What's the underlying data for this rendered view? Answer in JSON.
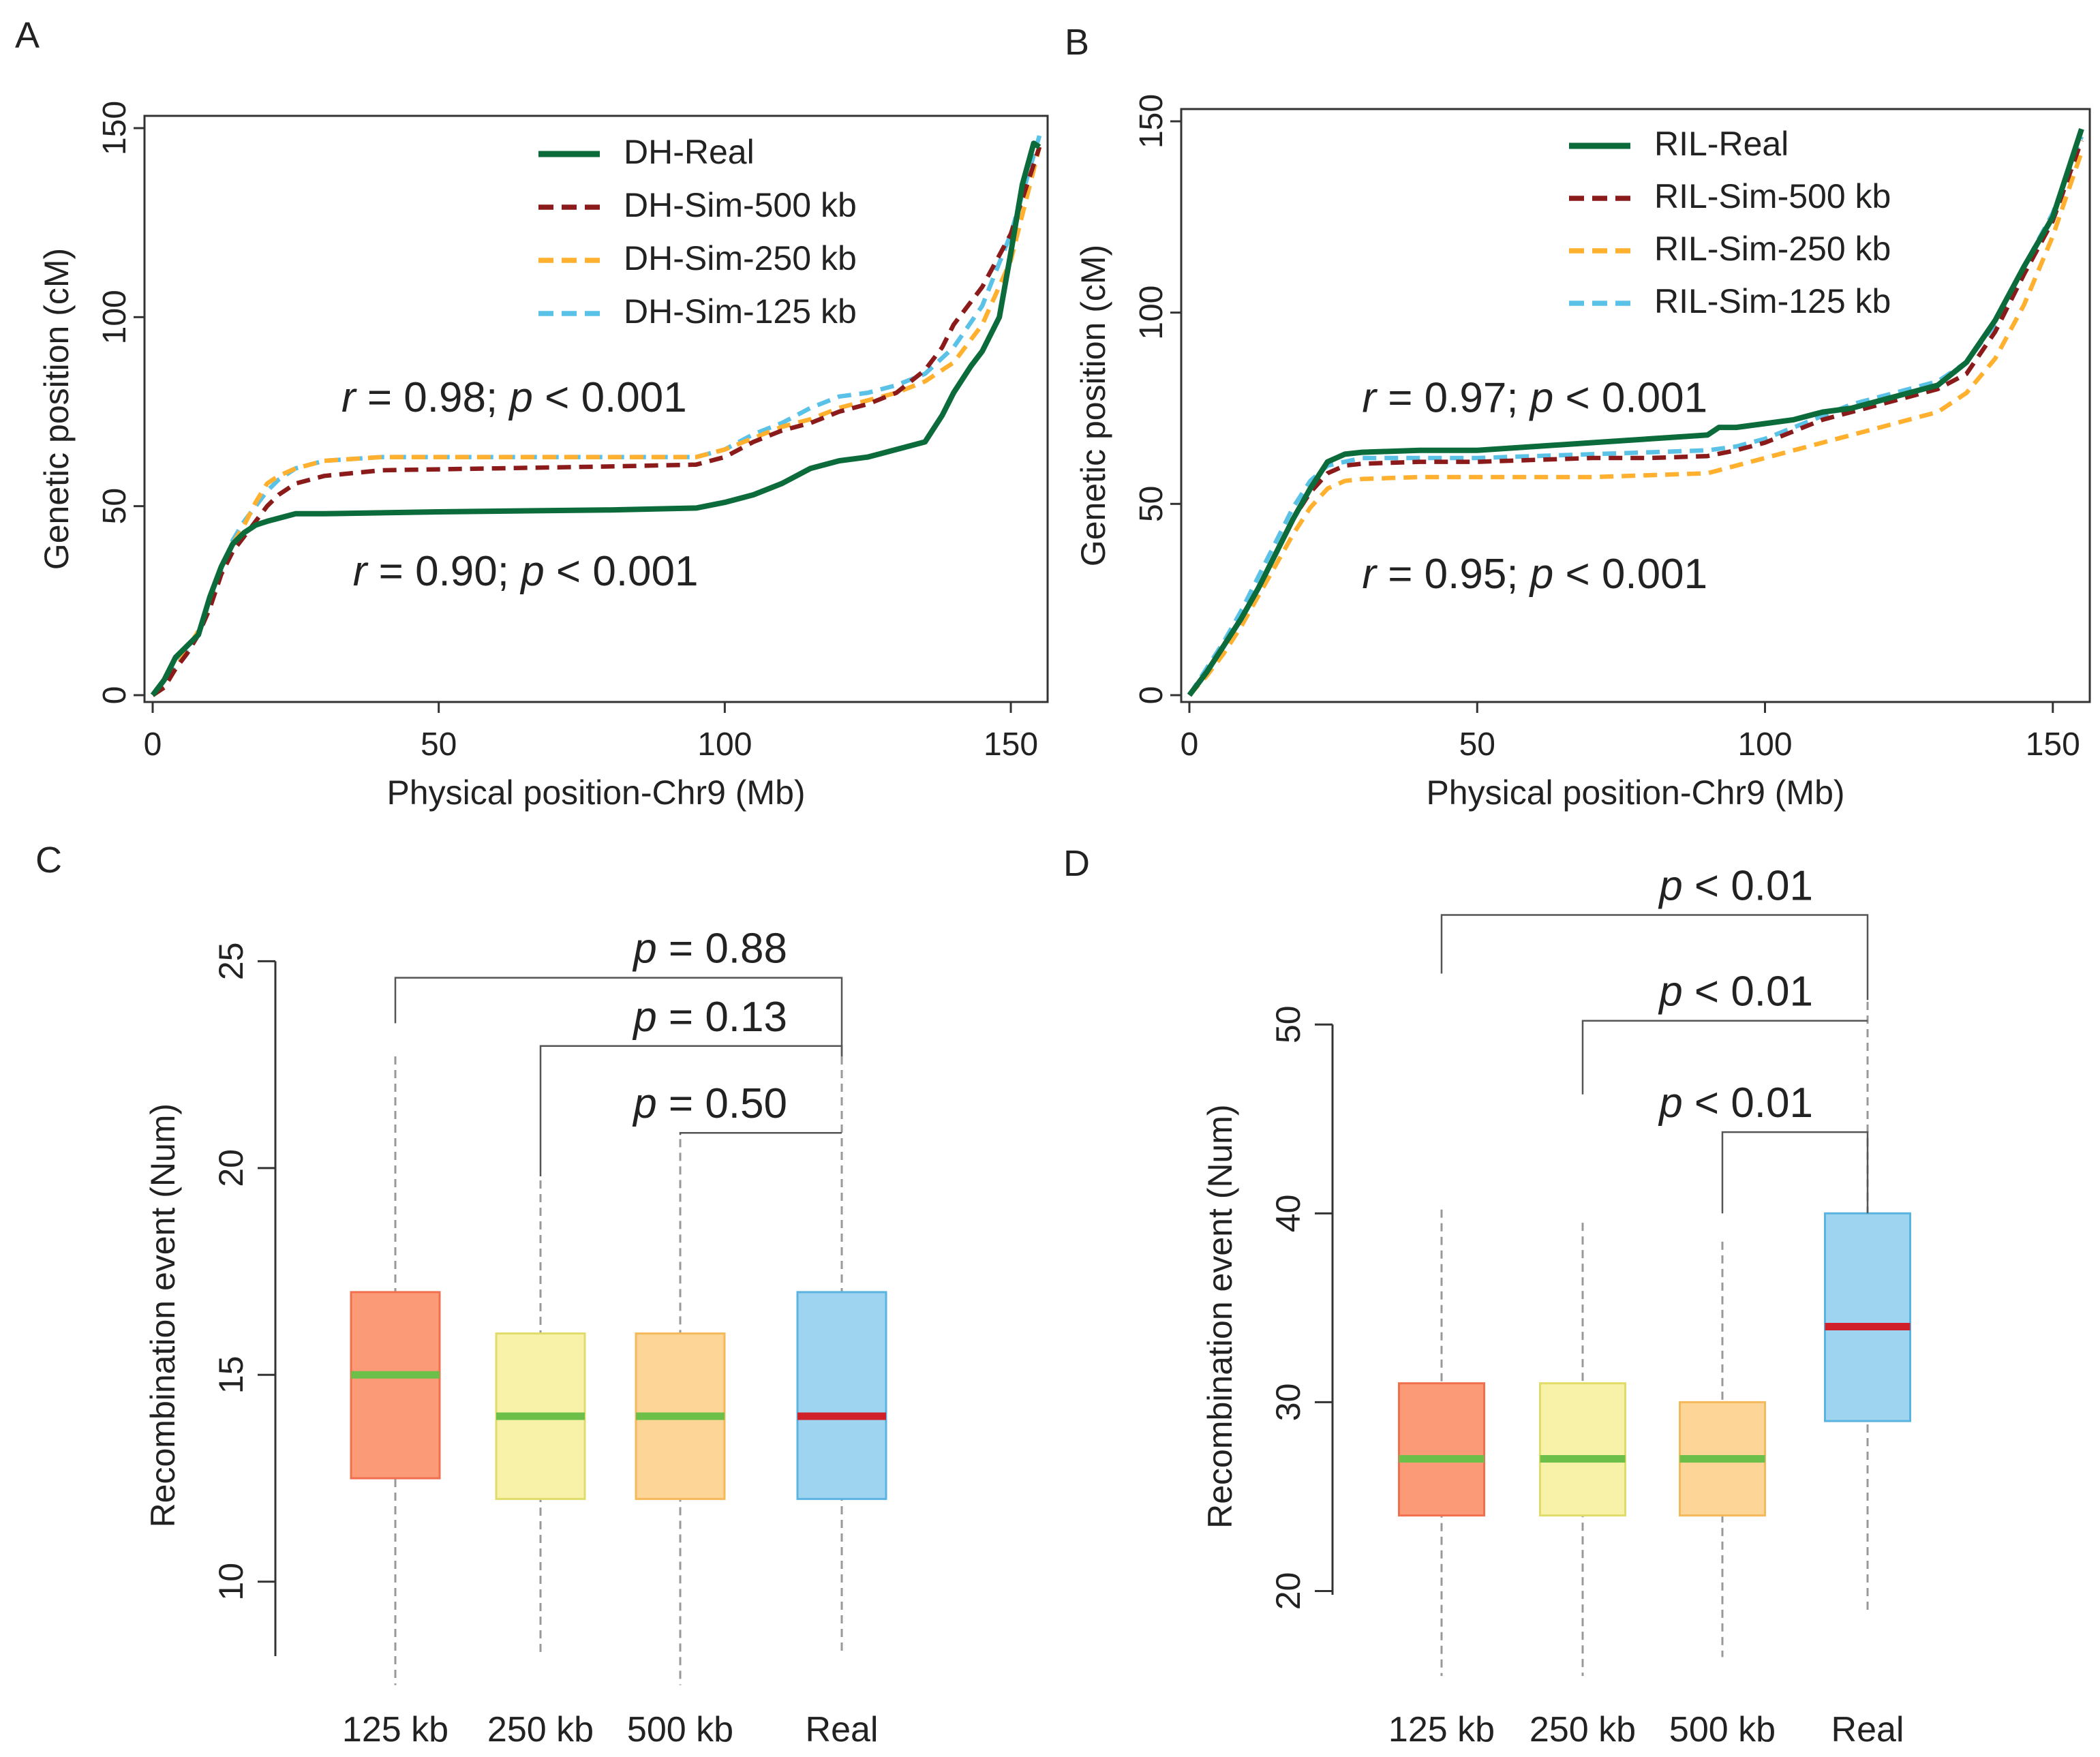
{
  "panel_labels": [
    "A",
    "B",
    "C",
    "D"
  ],
  "colors": {
    "real_line": "#0b6b3a",
    "sim500": "#8b1a1a",
    "sim250": "#ffb02e",
    "sim125": "#5bc2e7",
    "box125": "#fb9a77",
    "box125_edge": "#f0704e",
    "box250": "#f7f2a8",
    "box250_edge": "#e0dc6a",
    "box500": "#fdd596",
    "box500_edge": "#f5b85a",
    "boxReal": "#9fd4f0",
    "boxReal_edge": "#5bb4e0",
    "median_sim": "#6cc04a",
    "median_real": "#d0202a",
    "axis": "#333333",
    "whisker": "#999999"
  },
  "chart_data": [
    {
      "id": "A",
      "type": "line",
      "xlabel": "Physical position-Chr9 (Mb)",
      "ylabel": "Genetic position (cM)",
      "xlim": [
        0,
        155
      ],
      "ylim": [
        0,
        150
      ],
      "xticks": [
        0,
        50,
        100,
        150
      ],
      "yticks": [
        0,
        50,
        100,
        150
      ],
      "legend": [
        "DH-Real",
        "DH-Sim-500 kb",
        "DH-Sim-250 kb",
        "DH-Sim-125 kb"
      ],
      "annotations": [
        {
          "r_label": "r",
          "r_value": " = 0.98; ",
          "p_label": "p",
          "p_value": " < 0.001",
          "anchor_x": 33,
          "anchor_y": 75
        },
        {
          "r_label": "r",
          "r_value": " = 0.90; ",
          "p_label": "p",
          "p_value": " < 0.001",
          "anchor_x": 35,
          "anchor_y": 29
        }
      ],
      "series": [
        {
          "name": "DH-Real",
          "style": "real",
          "x": [
            0,
            2,
            4,
            6,
            8,
            10,
            12,
            14,
            16,
            18,
            20,
            25,
            30,
            50,
            80,
            95,
            100,
            105,
            110,
            115,
            120,
            125,
            130,
            135,
            138,
            140,
            143,
            145,
            148,
            150,
            152,
            154,
            155
          ],
          "y": [
            0,
            4,
            10,
            13,
            16,
            26,
            34,
            40,
            43,
            45,
            46,
            48,
            48,
            48.5,
            49,
            49.5,
            51,
            53,
            56,
            60,
            62,
            63,
            65,
            67,
            74,
            80,
            87,
            91,
            100,
            117,
            135,
            146,
            145
          ]
        },
        {
          "name": "DH-Sim-500 kb",
          "style": "sim500",
          "x": [
            0,
            2,
            4,
            6,
            8,
            10,
            12,
            14,
            16,
            18,
            20,
            22,
            25,
            30,
            40,
            60,
            80,
            95,
            100,
            105,
            110,
            115,
            120,
            125,
            130,
            135,
            138,
            140,
            145,
            150,
            155
          ],
          "y": [
            0,
            2,
            7,
            11,
            16,
            23,
            32,
            38,
            42,
            46,
            50,
            53,
            56,
            58,
            59.5,
            60,
            60.5,
            61,
            63,
            67,
            70,
            72,
            75,
            77,
            80,
            86,
            92,
            98,
            108,
            122,
            145
          ]
        },
        {
          "name": "DH-Sim-250 kb",
          "style": "sim250",
          "x": [
            0,
            2,
            4,
            6,
            8,
            10,
            12,
            14,
            16,
            18,
            20,
            22,
            25,
            30,
            40,
            60,
            80,
            95,
            100,
            105,
            110,
            115,
            120,
            125,
            130,
            135,
            140,
            145,
            150,
            155
          ],
          "y": [
            0,
            2,
            7,
            12,
            17,
            24,
            33,
            40,
            45,
            51,
            56,
            58,
            60,
            62,
            63,
            63,
            63,
            63,
            65,
            68,
            71,
            73,
            76,
            78,
            80,
            83,
            88,
            98,
            115,
            145
          ]
        },
        {
          "name": "DH-Sim-125 kb",
          "style": "sim125",
          "x": [
            0,
            2,
            4,
            6,
            8,
            10,
            12,
            14,
            16,
            18,
            20,
            22,
            25,
            30,
            40,
            60,
            80,
            95,
            100,
            105,
            110,
            115,
            120,
            125,
            130,
            135,
            140,
            145,
            150,
            155
          ],
          "y": [
            0,
            3,
            8,
            12,
            17,
            25,
            33,
            41,
            46,
            50,
            54,
            57,
            60,
            62,
            63,
            63,
            63,
            63,
            65,
            69,
            72,
            76,
            79,
            80,
            82,
            85,
            92,
            103,
            122,
            148
          ]
        }
      ]
    },
    {
      "id": "B",
      "type": "line",
      "xlabel": "Physical position-Chr9 (Mb)",
      "ylabel": "Genetic position (cM)",
      "xlim": [
        0,
        155
      ],
      "ylim": [
        0,
        150
      ],
      "xticks": [
        0,
        50,
        100,
        150
      ],
      "yticks": [
        0,
        50,
        100,
        150
      ],
      "legend": [
        "RIL-Real",
        "RIL-Sim-500 kb",
        "RIL-Sim-250 kb",
        "RIL-Sim-125 kb"
      ],
      "annotations": [
        {
          "r_label": "r",
          "r_value": " = 0.97; ",
          "p_label": "p",
          "p_value": " < 0.001",
          "anchor_x": 30,
          "anchor_y": 74
        },
        {
          "r_label": "r",
          "r_value": " = 0.95; ",
          "p_label": "p",
          "p_value": " < 0.001",
          "anchor_x": 30,
          "anchor_y": 28
        }
      ],
      "series": [
        {
          "name": "RIL-Real",
          "style": "real",
          "x": [
            0,
            3,
            6,
            9,
            12,
            15,
            18,
            21,
            24,
            27,
            30,
            40,
            50,
            60,
            70,
            80,
            90,
            92,
            95,
            100,
            105,
            110,
            115,
            120,
            125,
            130,
            135,
            140,
            145,
            150,
            155
          ],
          "y": [
            0,
            6,
            13,
            20,
            28,
            37,
            46,
            54,
            61,
            63,
            63.5,
            64,
            64,
            65,
            66,
            67,
            68,
            70,
            70,
            71,
            72,
            74,
            75,
            77,
            79,
            81,
            87,
            98,
            112,
            125,
            148
          ]
        },
        {
          "name": "RIL-Sim-500 kb",
          "style": "sim500",
          "x": [
            0,
            3,
            6,
            9,
            12,
            15,
            18,
            21,
            24,
            27,
            30,
            40,
            50,
            60,
            70,
            80,
            90,
            95,
            100,
            105,
            110,
            115,
            120,
            125,
            130,
            135,
            140,
            145,
            150,
            155
          ],
          "y": [
            0,
            6,
            13,
            20,
            28,
            37,
            46,
            53,
            58,
            60,
            60.5,
            61,
            61,
            61.5,
            62,
            62,
            62.5,
            64,
            66,
            69,
            72,
            74,
            76,
            78,
            80,
            84,
            95,
            110,
            124,
            145
          ]
        },
        {
          "name": "RIL-Sim-250 kb",
          "style": "sim250",
          "x": [
            0,
            3,
            6,
            9,
            12,
            15,
            18,
            21,
            24,
            27,
            30,
            40,
            50,
            60,
            70,
            80,
            90,
            95,
            100,
            105,
            110,
            115,
            120,
            125,
            130,
            135,
            140,
            145,
            150,
            155
          ],
          "y": [
            0,
            5,
            11,
            18,
            26,
            34,
            42,
            49,
            54,
            56,
            56.5,
            57,
            57,
            57,
            57,
            57.5,
            58,
            60,
            62,
            64,
            66,
            68,
            70,
            72,
            74,
            79,
            88,
            102,
            120,
            142
          ]
        },
        {
          "name": "RIL-Sim-125 kb",
          "style": "sim125",
          "x": [
            0,
            3,
            6,
            9,
            12,
            15,
            18,
            21,
            24,
            27,
            30,
            40,
            50,
            60,
            70,
            80,
            90,
            95,
            100,
            105,
            110,
            115,
            120,
            125,
            130,
            135,
            140,
            145,
            150,
            155
          ],
          "y": [
            0,
            7,
            14,
            22,
            31,
            40,
            49,
            56,
            60,
            61,
            62,
            62,
            62,
            62.5,
            63,
            63.5,
            64,
            65,
            67,
            70,
            73,
            76,
            78,
            80,
            82,
            87,
            97,
            112,
            126,
            146
          ]
        }
      ]
    },
    {
      "id": "C",
      "type": "box",
      "ylabel": "Recombination event (Num)",
      "ylim": [
        8.2,
        25.5
      ],
      "yticks": [
        10,
        15,
        20,
        25
      ],
      "categories": [
        "125 kb",
        "250 kb",
        "500 kb",
        "Real"
      ],
      "boxes": [
        {
          "q1": 12.5,
          "median": 15,
          "q3": 17,
          "whisker_low": 7.5,
          "whisker_high": 22.7,
          "fill": "box125",
          "edge": "box125_edge",
          "median_color": "median_sim"
        },
        {
          "q1": 12,
          "median": 14,
          "q3": 16,
          "whisker_low": 8.3,
          "whisker_high": 19.7,
          "fill": "box250",
          "edge": "box250_edge",
          "median_color": "median_sim"
        },
        {
          "q1": 12,
          "median": 14,
          "q3": 16,
          "whisker_low": 7.5,
          "whisker_high": 20.7,
          "fill": "box500",
          "edge": "box500_edge",
          "median_color": "median_sim"
        },
        {
          "q1": 12,
          "median": 14,
          "q3": 17,
          "whisker_low": 8.3,
          "whisker_high": 22.7,
          "fill": "boxReal",
          "edge": "boxReal_edge",
          "median_color": "median_real"
        }
      ],
      "comparisons": [
        {
          "from": 0,
          "to": 3,
          "label_p": "p",
          "label_rest": " = 0.88",
          "level": 24.6,
          "from_end": 23.5,
          "to_end": 22.7
        },
        {
          "from": 1,
          "to": 3,
          "label_p": "p",
          "label_rest": " = 0.13",
          "level": 22.95,
          "from_end": 19.8,
          "to_end": 22.7
        },
        {
          "from": 2,
          "to": 3,
          "label_p": "p",
          "label_rest": " = 0.50",
          "level": 20.85,
          "from_end": 20.8,
          "to_end": 20.85
        }
      ]
    },
    {
      "id": "D",
      "type": "box",
      "ylabel": "Recombination event (Num)",
      "ylim": [
        19.8,
        51.2
      ],
      "yticks": [
        20,
        30,
        40,
        50
      ],
      "categories": [
        "125 kb",
        "250 kb",
        "500 kb",
        "Real"
      ],
      "boxes": [
        {
          "q1": 24,
          "median": 27,
          "q3": 31,
          "whisker_low": 15.5,
          "whisker_high": 40.2,
          "fill": "box125",
          "edge": "box125_edge",
          "median_color": "median_sim"
        },
        {
          "q1": 24,
          "median": 27,
          "q3": 31,
          "whisker_low": 15.5,
          "whisker_high": 39.5,
          "fill": "box250",
          "edge": "box250_edge",
          "median_color": "median_sim"
        },
        {
          "q1": 24,
          "median": 27,
          "q3": 30,
          "whisker_low": 16.5,
          "whisker_high": 38.5,
          "fill": "box500",
          "edge": "box500_edge",
          "median_color": "median_sim"
        },
        {
          "q1": 29,
          "median": 34,
          "q3": 40,
          "whisker_low": 18.9,
          "whisker_high": 51.2,
          "fill": "boxReal",
          "edge": "boxReal_edge",
          "median_color": "median_real"
        }
      ],
      "comparisons": [
        {
          "from": 0,
          "to": 3,
          "label_p": "p",
          "label_rest": " < 0.01",
          "level": 55.8,
          "from_end": 52.7,
          "to_end": 51.3
        },
        {
          "from": 1,
          "to": 3,
          "label_p": "p",
          "label_rest": " < 0.01",
          "level": 50.2,
          "from_end": 46.3,
          "to_end": 50.2
        },
        {
          "from": 2,
          "to": 3,
          "label_p": "p",
          "label_rest": " < 0.01",
          "level": 44.3,
          "from_end": 40.0,
          "to_end": 40.0
        }
      ]
    }
  ]
}
